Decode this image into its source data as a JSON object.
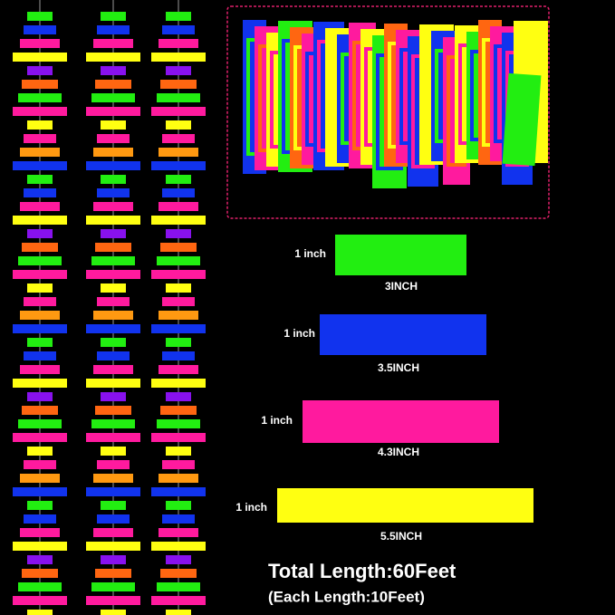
{
  "swatches": [
    {
      "height_label": "1 inch",
      "width_label": "3INCH"
    },
    {
      "height_label": "1 inch",
      "width_label": "3.5INCH"
    },
    {
      "height_label": "1 inch",
      "width_label": "4.3INCH"
    },
    {
      "height_label": "1 inch",
      "width_label": "5.5INCH"
    }
  ],
  "total": {
    "line1": "Total Length:60Feet",
    "line2": "(Each Length:10Feet)"
  }
}
